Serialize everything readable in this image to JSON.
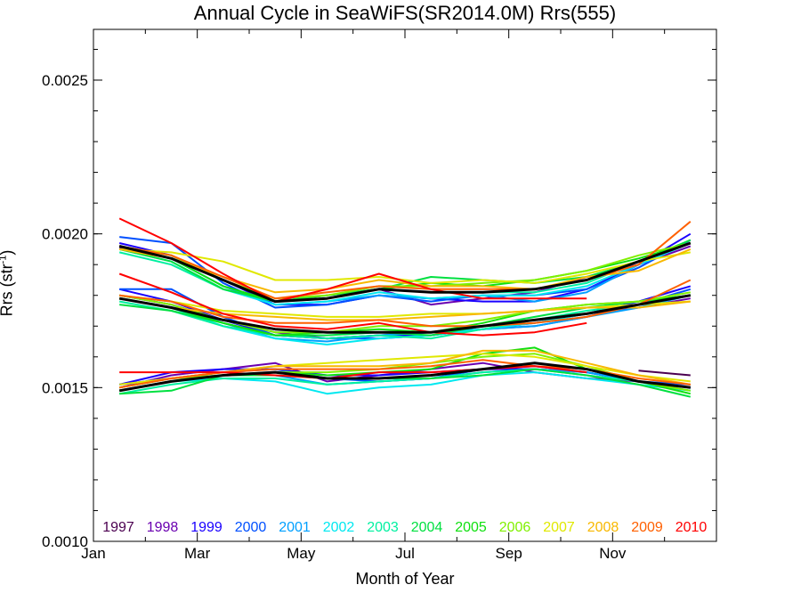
{
  "chart_data": {
    "type": "line",
    "title": "Annual Cycle in SeaWiFS(SR2014.0M) Rrs(555)",
    "xlabel": "Month of Year",
    "ylabel": "Rrs (str",
    "ylabel_sup": "-1",
    "ylabel_close": ")",
    "xlim": [
      0,
      12
    ],
    "ylim": [
      0.001,
      0.002665
    ],
    "x_ticks": [
      {
        "label": "Jan",
        "value": 0
      },
      {
        "label": "Mar",
        "value": 2
      },
      {
        "label": "May",
        "value": 4
      },
      {
        "label": "Jul",
        "value": 6
      },
      {
        "label": "Sep",
        "value": 8
      },
      {
        "label": "Nov",
        "value": 10
      }
    ],
    "y_ticks": [
      "0.0010",
      "0.0015",
      "0.0020",
      "0.0025"
    ],
    "x": [
      0.5,
      1.5,
      2.5,
      3.5,
      4.5,
      5.5,
      6.5,
      7.5,
      8.5,
      9.5,
      10.5,
      11.5
    ],
    "legend_placement": "bottom inside plot",
    "series": [
      {
        "name": "1997",
        "color": "#4b0050",
        "north": [
          null,
          null,
          null,
          null,
          null,
          null,
          null,
          null,
          null,
          null,
          null,
          null
        ],
        "mean": [
          null,
          null,
          null,
          null,
          null,
          null,
          null,
          null,
          null,
          null,
          null,
          null
        ],
        "south": [
          null,
          null,
          null,
          null,
          null,
          null,
          null,
          null,
          null,
          null,
          0.001555,
          0.00154
        ]
      },
      {
        "name": "1998",
        "color": "#6a00b0",
        "north": [
          0.001955,
          0.00192,
          0.00185,
          0.00178,
          0.0018,
          0.00182,
          0.00177,
          0.00179,
          0.00181,
          0.00186,
          0.0019,
          0.00196
        ],
        "mean": [
          0.0018,
          0.00177,
          0.00172,
          0.00168,
          0.00166,
          0.00167,
          0.00168,
          0.0017,
          0.00172,
          0.00174,
          0.00176,
          0.00179
        ],
        "south": [
          0.0015,
          0.00154,
          0.00156,
          0.00158,
          0.00152,
          0.00154,
          0.00156,
          0.00158,
          0.00155,
          0.00153,
          0.00152,
          0.0015
        ]
      },
      {
        "name": "1999",
        "color": "#1a00ff",
        "north": [
          0.00197,
          0.00193,
          0.00185,
          0.00177,
          0.00177,
          0.0018,
          0.00179,
          0.00178,
          0.00178,
          0.00182,
          0.0019,
          0.002
        ],
        "mean": [
          0.00182,
          0.00178,
          0.00172,
          0.00167,
          0.00166,
          0.00167,
          0.00167,
          0.00169,
          0.00171,
          0.00174,
          0.00178,
          0.00183
        ],
        "south": [
          0.00151,
          0.00155,
          0.00156,
          0.00156,
          0.00154,
          0.00154,
          0.00155,
          0.00156,
          0.00156,
          0.00155,
          0.00152,
          0.0015
        ]
      },
      {
        "name": "2000",
        "color": "#0050ff",
        "north": [
          0.00199,
          0.00197,
          0.00184,
          0.00176,
          0.00177,
          0.0018,
          0.00178,
          0.0018,
          0.0018,
          0.00182,
          0.00189,
          0.00198
        ],
        "mean": [
          0.00182,
          0.00182,
          0.00173,
          0.00167,
          0.00166,
          0.00166,
          0.00167,
          0.00169,
          0.0017,
          0.00173,
          0.00177,
          0.00182
        ],
        "south": [
          0.00151,
          0.00153,
          0.00155,
          0.00156,
          0.00153,
          0.00152,
          0.00153,
          0.00156,
          0.00157,
          0.00155,
          0.00152,
          0.00151
        ]
      },
      {
        "name": "2001",
        "color": "#00a0ff",
        "north": [
          0.00196,
          0.00192,
          0.00183,
          0.00177,
          0.00178,
          0.0018,
          0.00179,
          0.0018,
          0.00178,
          0.00181,
          0.0019,
          0.00197
        ],
        "mean": [
          0.0018,
          0.00177,
          0.00171,
          0.00166,
          0.00165,
          0.00167,
          0.00168,
          0.00169,
          0.0017,
          0.00173,
          0.00176,
          0.0018
        ],
        "south": [
          0.0015,
          0.00153,
          0.00154,
          0.00154,
          0.00151,
          0.00152,
          0.00153,
          0.00155,
          0.00156,
          0.00155,
          0.00152,
          0.0015
        ]
      },
      {
        "name": "2002",
        "color": "#00e8f0",
        "north": [
          0.00195,
          0.00191,
          0.00182,
          0.00177,
          0.00178,
          0.00181,
          0.00179,
          0.0018,
          0.0018,
          0.00183,
          0.0019,
          0.00197
        ],
        "mean": [
          0.00179,
          0.00176,
          0.0017,
          0.00166,
          0.00164,
          0.00166,
          0.00167,
          0.00169,
          0.00171,
          0.00174,
          0.00177,
          0.0018
        ],
        "south": [
          0.00149,
          0.00152,
          0.00153,
          0.00152,
          0.00148,
          0.0015,
          0.00151,
          0.00154,
          0.00155,
          0.00153,
          0.00151,
          0.00149
        ]
      },
      {
        "name": "2003",
        "color": "#00f0a0",
        "north": [
          0.00194,
          0.0019,
          0.00182,
          0.00178,
          0.00179,
          0.00182,
          0.00181,
          0.00181,
          0.00181,
          0.00184,
          0.00191,
          0.00197
        ],
        "mean": [
          0.00178,
          0.00175,
          0.0017,
          0.00167,
          0.00166,
          0.00167,
          0.00166,
          0.00169,
          0.00172,
          0.00175,
          0.00177,
          0.0018
        ],
        "south": [
          0.00148,
          0.00151,
          0.00153,
          0.00153,
          0.00151,
          0.00152,
          0.00153,
          0.00155,
          0.00156,
          0.00154,
          0.00152,
          0.00149
        ]
      },
      {
        "name": "2004",
        "color": "#00e040",
        "north": [
          0.00195,
          0.00191,
          0.00182,
          0.00178,
          0.0018,
          0.00182,
          0.00186,
          0.00185,
          0.00184,
          0.00186,
          0.00191,
          0.00198
        ],
        "mean": [
          0.00177,
          0.00175,
          0.00171,
          0.00167,
          0.00167,
          0.00168,
          0.00167,
          0.0017,
          0.00173,
          0.00176,
          0.00178,
          0.0018
        ],
        "south": [
          0.00148,
          0.00149,
          0.00154,
          0.00154,
          0.00153,
          0.00153,
          0.00153,
          0.00154,
          0.00156,
          0.00154,
          0.00151,
          0.00147
        ]
      },
      {
        "name": "2005",
        "color": "#10e010",
        "north": [
          0.00196,
          0.00192,
          0.00183,
          0.00178,
          0.00179,
          0.00182,
          0.00184,
          0.00183,
          0.00185,
          0.00188,
          0.00192,
          0.00197
        ],
        "mean": [
          0.00179,
          0.00176,
          0.00171,
          0.00167,
          0.00168,
          0.00169,
          0.00168,
          0.00171,
          0.00175,
          0.00177,
          0.00178,
          0.0018
        ],
        "south": [
          0.00149,
          0.00152,
          0.00154,
          0.00155,
          0.00154,
          0.00155,
          0.00156,
          0.00161,
          0.00163,
          0.00156,
          0.00152,
          0.00148
        ]
      },
      {
        "name": "2006",
        "color": "#80f000",
        "north": [
          0.00196,
          0.00193,
          0.00185,
          0.00179,
          0.0018,
          0.00183,
          0.00183,
          0.00184,
          0.00185,
          0.00188,
          0.00193,
          0.00197
        ],
        "mean": [
          0.0018,
          0.00177,
          0.00172,
          0.00168,
          0.00168,
          0.0017,
          0.0017,
          0.00172,
          0.00175,
          0.00177,
          0.00178,
          0.00181
        ],
        "south": [
          0.0015,
          0.00153,
          0.00154,
          0.00155,
          0.00155,
          0.00156,
          0.00158,
          0.0016,
          0.00161,
          0.00157,
          0.00152,
          0.00149
        ]
      },
      {
        "name": "2007",
        "color": "#e0e800",
        "north": [
          0.00195,
          0.00194,
          0.00191,
          0.00185,
          0.00185,
          0.00186,
          0.00184,
          0.00185,
          0.00184,
          0.00187,
          0.00191,
          0.00194
        ],
        "mean": [
          0.0018,
          0.00178,
          0.00175,
          0.00174,
          0.00173,
          0.00173,
          0.00174,
          0.00174,
          0.00175,
          0.00176,
          0.00177,
          0.00178
        ],
        "south": [
          0.00151,
          0.00153,
          0.00155,
          0.00157,
          0.00158,
          0.00159,
          0.0016,
          0.00161,
          0.0016,
          0.00157,
          0.00154,
          0.00152
        ]
      },
      {
        "name": "2008",
        "color": "#f8b800",
        "north": [
          0.00195,
          0.00192,
          0.00186,
          0.00181,
          0.00182,
          0.00185,
          0.00183,
          0.00183,
          0.00182,
          0.00186,
          0.00188,
          0.00195
        ],
        "mean": [
          0.00179,
          0.00176,
          0.00174,
          0.00173,
          0.00172,
          0.00172,
          0.00173,
          0.00174,
          0.00175,
          0.00176,
          0.00176,
          0.00178
        ],
        "south": [
          0.0015,
          0.00153,
          0.00155,
          0.00157,
          0.00157,
          0.00157,
          0.00158,
          0.00162,
          0.00162,
          0.00158,
          0.00154,
          0.00151
        ]
      },
      {
        "name": "2009",
        "color": "#ff6000",
        "north": [
          0.00196,
          0.00193,
          0.00186,
          0.00179,
          0.00181,
          0.00183,
          0.00182,
          0.00182,
          0.00182,
          0.00185,
          0.0019,
          0.00204
        ],
        "mean": [
          0.0018,
          0.00178,
          0.00173,
          0.00171,
          0.00171,
          0.00172,
          0.0017,
          0.0017,
          0.00171,
          0.00173,
          0.00177,
          0.00185
        ],
        "south": [
          0.0015,
          0.00153,
          0.00155,
          0.00156,
          0.00156,
          0.00156,
          0.00157,
          0.00159,
          0.00157,
          0.00156,
          0.00153,
          0.00151
        ]
      },
      {
        "name": "2010",
        "color": "#ff0000",
        "north": [
          0.00205,
          0.00197,
          0.00187,
          0.00178,
          0.00182,
          0.00187,
          0.00182,
          0.00179,
          0.00179,
          0.00179,
          null,
          null
        ],
        "mean": [
          0.00187,
          0.00181,
          0.00174,
          0.0017,
          0.00169,
          0.00171,
          0.00168,
          0.00167,
          0.00168,
          0.00171,
          null,
          null
        ],
        "south": [
          0.00155,
          0.00155,
          0.00155,
          0.00154,
          0.00153,
          0.00155,
          0.00155,
          0.00156,
          0.00157,
          0.00155,
          null,
          null
        ]
      },
      {
        "color": "#000000",
        "north": [
          0.00196,
          0.00192,
          0.00185,
          0.00178,
          0.00179,
          0.00182,
          0.00181,
          0.00181,
          0.00182,
          0.00185,
          0.00191,
          0.00197
        ],
        "mean": [
          0.00179,
          0.00176,
          0.00172,
          0.00169,
          0.00168,
          0.00168,
          0.00168,
          0.0017,
          0.00172,
          0.00174,
          0.00177,
          0.0018
        ],
        "south": [
          0.00149,
          0.00152,
          0.00154,
          0.00155,
          0.00153,
          0.00153,
          0.00154,
          0.00156,
          0.00158,
          0.00156,
          0.00152,
          0.0015
        ]
      }
    ]
  }
}
